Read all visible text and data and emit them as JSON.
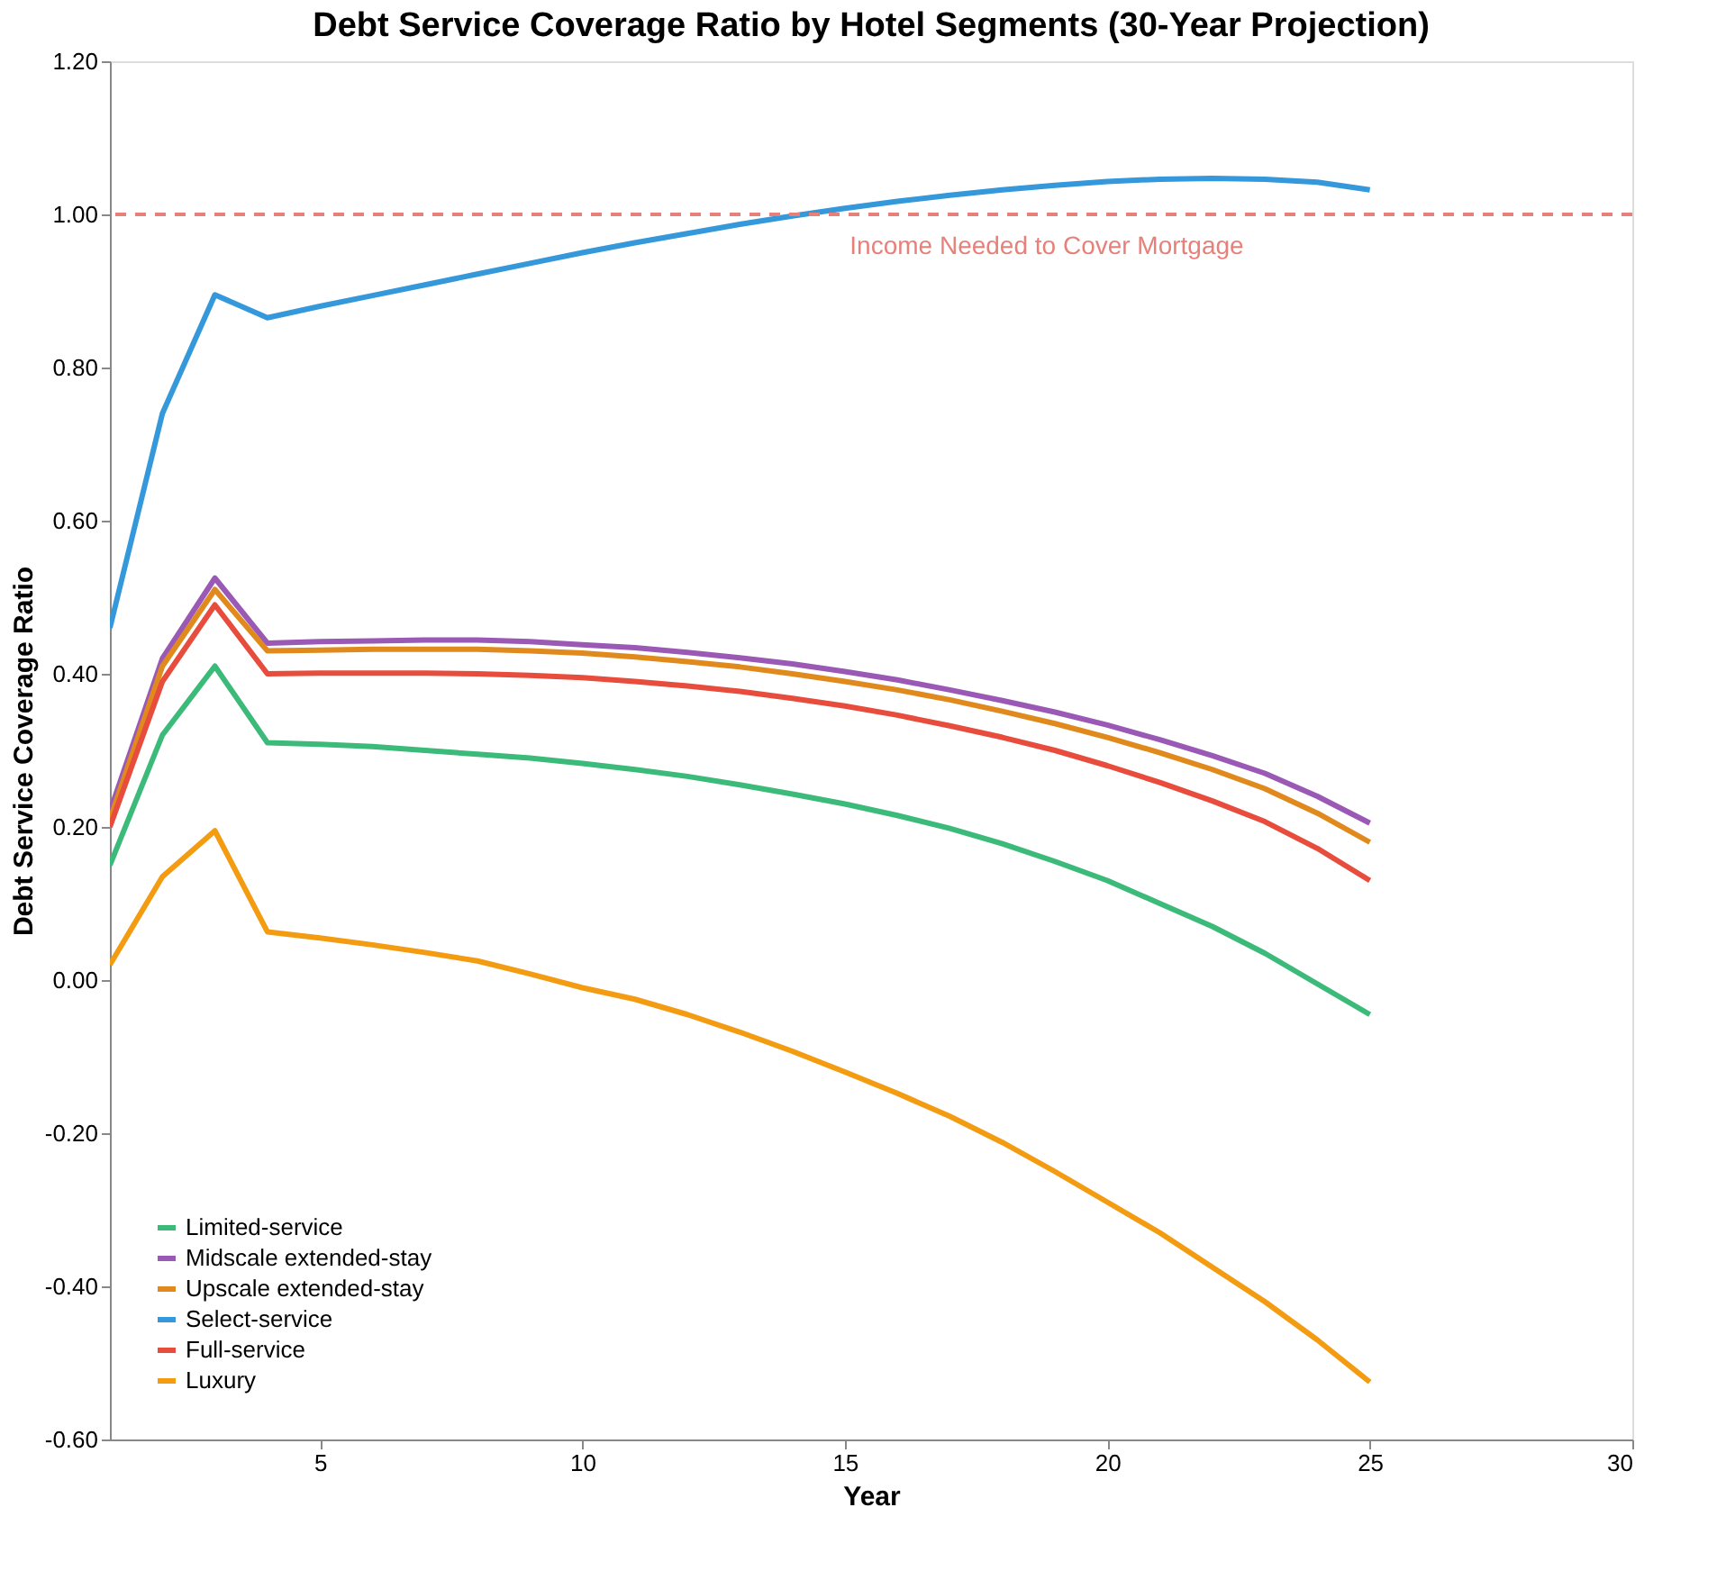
{
  "chart_data": {
    "type": "line",
    "title": "Debt Service Coverage Ratio by Hotel Segments (30-Year Projection)",
    "xlabel": "Year",
    "ylabel": "Debt Service Coverage Ratio",
    "x": [
      1,
      2,
      3,
      4,
      5,
      6,
      7,
      8,
      9,
      10,
      11,
      12,
      13,
      14,
      15,
      16,
      17,
      18,
      19,
      20,
      21,
      22,
      23,
      24,
      25
    ],
    "series": [
      {
        "name": "Limited-service",
        "color": "#3cba7a",
        "values": [
          0.15,
          0.32,
          0.41,
          0.31,
          0.308,
          0.305,
          0.3,
          0.295,
          0.29,
          0.283,
          0.275,
          0.266,
          0.255,
          0.243,
          0.23,
          0.215,
          0.198,
          0.178,
          0.155,
          0.13,
          0.1,
          0.07,
          0.035,
          -0.005,
          -0.045
        ]
      },
      {
        "name": "Midscale extended-stay",
        "color": "#9b59b6",
        "values": [
          0.22,
          0.42,
          0.525,
          0.44,
          0.442,
          0.443,
          0.444,
          0.444,
          0.442,
          0.438,
          0.434,
          0.428,
          0.421,
          0.413,
          0.403,
          0.392,
          0.379,
          0.365,
          0.35,
          0.333,
          0.314,
          0.293,
          0.27,
          0.24,
          0.205
        ]
      },
      {
        "name": "Upscale extended-stay",
        "color": "#e08a1e",
        "values": [
          0.21,
          0.41,
          0.51,
          0.43,
          0.431,
          0.432,
          0.432,
          0.432,
          0.43,
          0.427,
          0.422,
          0.416,
          0.409,
          0.4,
          0.39,
          0.379,
          0.366,
          0.351,
          0.335,
          0.317,
          0.297,
          0.275,
          0.25,
          0.218,
          0.18
        ]
      },
      {
        "name": "Select-service",
        "color": "#3498db",
        "values": [
          0.46,
          0.74,
          0.895,
          0.865,
          0.88,
          0.894,
          0.908,
          0.922,
          0.936,
          0.95,
          0.963,
          0.975,
          0.987,
          0.998,
          1.008,
          1.017,
          1.025,
          1.032,
          1.038,
          1.043,
          1.046,
          1.047,
          1.046,
          1.042,
          1.032
        ]
      },
      {
        "name": "Full-service",
        "color": "#e74c3c",
        "values": [
          0.2,
          0.39,
          0.49,
          0.4,
          0.401,
          0.401,
          0.401,
          0.4,
          0.398,
          0.395,
          0.39,
          0.384,
          0.377,
          0.368,
          0.358,
          0.346,
          0.332,
          0.317,
          0.3,
          0.28,
          0.258,
          0.234,
          0.207,
          0.172,
          0.13
        ]
      },
      {
        "name": "Luxury",
        "color": "#f39c12",
        "values": [
          0.02,
          0.135,
          0.195,
          0.063,
          0.055,
          0.046,
          0.036,
          0.025,
          0.008,
          -0.01,
          -0.025,
          -0.045,
          -0.068,
          -0.093,
          -0.12,
          -0.148,
          -0.178,
          -0.212,
          -0.25,
          -0.29,
          -0.33,
          -0.375,
          -0.42,
          -0.47,
          -0.525
        ]
      }
    ],
    "xlim": [
      1,
      30
    ],
    "xticks": [
      5,
      10,
      15,
      20,
      25,
      30
    ],
    "ylim": [
      -0.6,
      1.2
    ],
    "yticks": [
      {
        "value": -0.6,
        "label": "-0.60"
      },
      {
        "value": -0.4,
        "label": "-0.40"
      },
      {
        "value": -0.2,
        "label": "-0.20"
      },
      {
        "value": 0,
        "label": "0.00"
      },
      {
        "value": 0.2,
        "label": "0.20"
      },
      {
        "value": 0.4,
        "label": "0.40"
      },
      {
        "value": 0.6,
        "label": "0.60"
      },
      {
        "value": 0.8,
        "label": "0.80"
      },
      {
        "value": 1.0,
        "label": "1.00"
      },
      {
        "value": 1.2,
        "label": "1.20"
      }
    ],
    "ref_lines": [
      {
        "axis": "y",
        "value": 1.0,
        "label": "Income Needed to Cover Mortgage",
        "color": "#e8807a",
        "line_style": "dashed"
      }
    ],
    "legend": "bottom left",
    "grid": false,
    "marker": "none",
    "line_style": "solid"
  }
}
